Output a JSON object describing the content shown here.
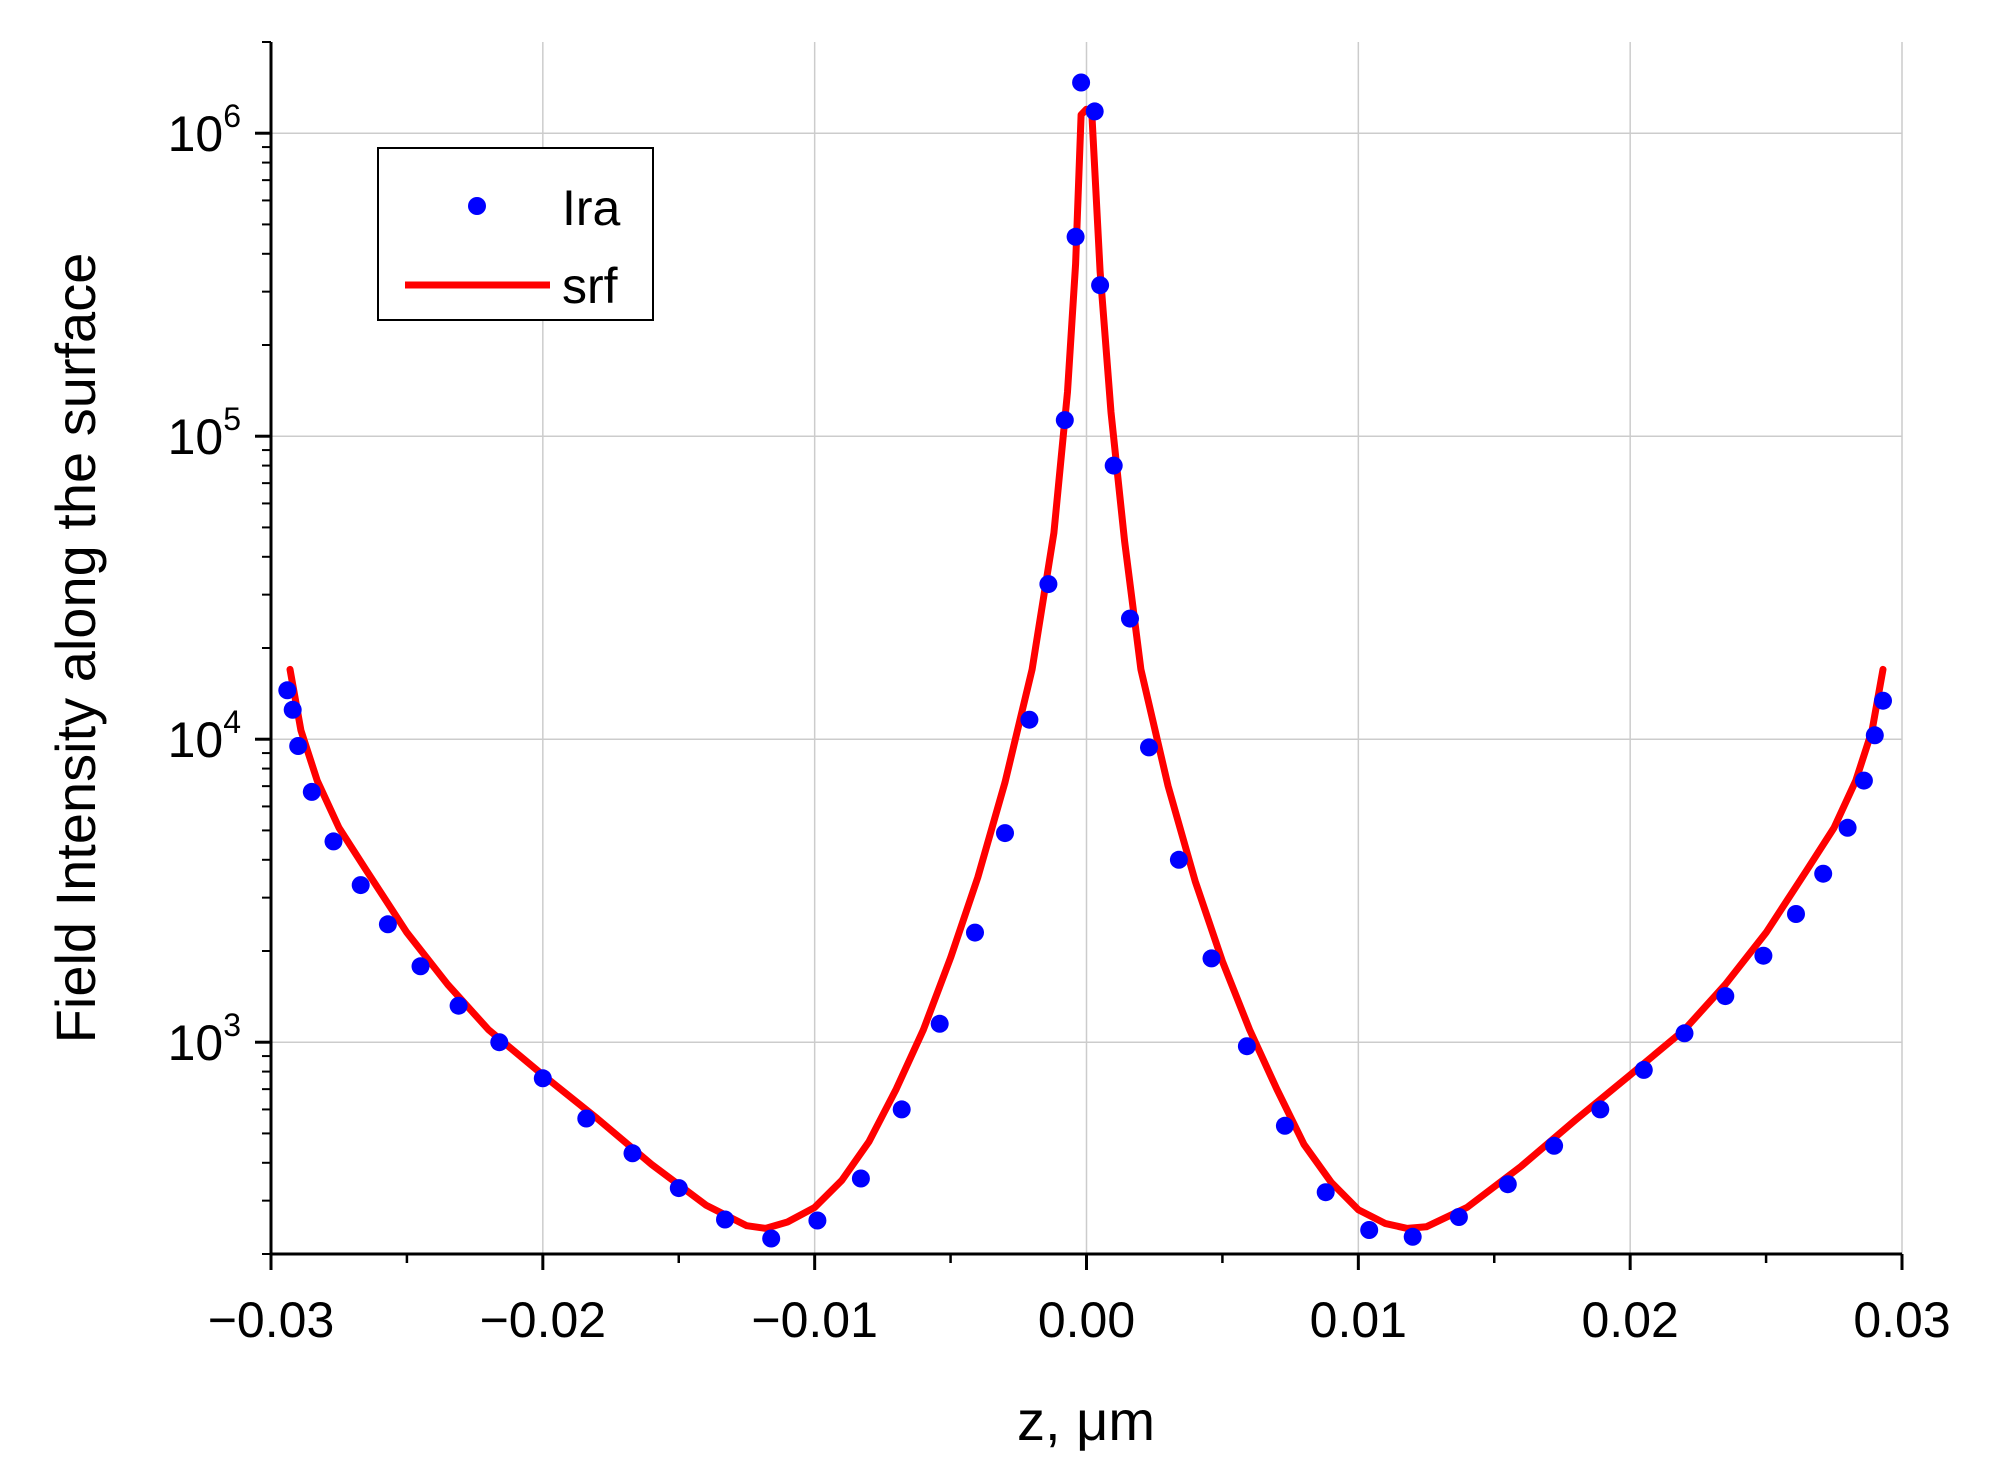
{
  "chart_data": {
    "type": "line",
    "xlabel": "z, μm",
    "ylabel": "Field Intensity along the surface",
    "xlim": [
      -0.03,
      0.03
    ],
    "ylim": [
      200,
      2000000
    ],
    "yscale": "log",
    "grid": true,
    "legend_position": "top-left",
    "x_ticks": [
      {
        "value": -0.03,
        "label": "−0.03"
      },
      {
        "value": -0.02,
        "label": "−0.02"
      },
      {
        "value": -0.01,
        "label": "−0.01"
      },
      {
        "value": 0.0,
        "label": "0.00"
      },
      {
        "value": 0.01,
        "label": "0.01"
      },
      {
        "value": 0.02,
        "label": "0.02"
      },
      {
        "value": 0.03,
        "label": "0.03"
      }
    ],
    "y_ticks": [
      {
        "value": 1000,
        "base": "10",
        "exp": "3"
      },
      {
        "value": 10000,
        "base": "10",
        "exp": "4"
      },
      {
        "value": 100000,
        "base": "10",
        "exp": "5"
      },
      {
        "value": 1000000,
        "base": "10",
        "exp": "6"
      }
    ],
    "series": [
      {
        "name": "Ira",
        "style": "scatter",
        "color": "#0000ff",
        "points": [
          [
            -0.0294,
            14500
          ],
          [
            -0.0292,
            12500
          ],
          [
            -0.029,
            9500
          ],
          [
            -0.0285,
            6700
          ],
          [
            -0.0277,
            4600
          ],
          [
            -0.0267,
            3300
          ],
          [
            -0.0257,
            2450
          ],
          [
            -0.0245,
            1780
          ],
          [
            -0.0231,
            1320
          ],
          [
            -0.0216,
            1000
          ],
          [
            -0.02,
            760
          ],
          [
            -0.0184,
            560
          ],
          [
            -0.0167,
            430
          ],
          [
            -0.015,
            330
          ],
          [
            -0.0133,
            260
          ],
          [
            -0.0116,
            225
          ],
          [
            -0.0099,
            258
          ],
          [
            -0.0083,
            355
          ],
          [
            -0.0068,
            600
          ],
          [
            -0.0054,
            1150
          ],
          [
            -0.0041,
            2300
          ],
          [
            -0.003,
            4900
          ],
          [
            -0.0021,
            11600
          ],
          [
            -0.0014,
            32500
          ],
          [
            -0.0008,
            113000
          ],
          [
            -0.0004,
            455000
          ],
          [
            -0.0002,
            1470000
          ],
          [
            0.0003,
            1180000
          ],
          [
            0.0005,
            315000
          ],
          [
            0.001,
            80000
          ],
          [
            0.0016,
            25000
          ],
          [
            0.0023,
            9400
          ],
          [
            0.0034,
            4000
          ],
          [
            0.0046,
            1890
          ],
          [
            0.0059,
            970
          ],
          [
            0.0073,
            530
          ],
          [
            0.0088,
            320
          ],
          [
            0.0104,
            240
          ],
          [
            0.012,
            228
          ],
          [
            0.0137,
            265
          ],
          [
            0.0155,
            340
          ],
          [
            0.0172,
            455
          ],
          [
            0.0189,
            600
          ],
          [
            0.0205,
            810
          ],
          [
            0.022,
            1070
          ],
          [
            0.0235,
            1420
          ],
          [
            0.0249,
            1930
          ],
          [
            0.0261,
            2650
          ],
          [
            0.0271,
            3600
          ],
          [
            0.028,
            5100
          ],
          [
            0.0286,
            7300
          ],
          [
            0.029,
            10300
          ],
          [
            0.0293,
            13400
          ]
        ]
      },
      {
        "name": "srf",
        "style": "line",
        "color": "#ff0000",
        "points": [
          [
            -0.0293,
            17000
          ],
          [
            -0.0289,
            10700
          ],
          [
            -0.0283,
            7300
          ],
          [
            -0.0275,
            5100
          ],
          [
            -0.0265,
            3700
          ],
          [
            -0.025,
            2300
          ],
          [
            -0.0235,
            1550
          ],
          [
            -0.022,
            1100
          ],
          [
            -0.02,
            780
          ],
          [
            -0.018,
            560
          ],
          [
            -0.016,
            395
          ],
          [
            -0.014,
            290
          ],
          [
            -0.0125,
            248
          ],
          [
            -0.0118,
            243
          ],
          [
            -0.011,
            255
          ],
          [
            -0.01,
            285
          ],
          [
            -0.009,
            350
          ],
          [
            -0.008,
            470
          ],
          [
            -0.007,
            700
          ],
          [
            -0.006,
            1100
          ],
          [
            -0.005,
            1900
          ],
          [
            -0.004,
            3500
          ],
          [
            -0.003,
            7200
          ],
          [
            -0.002,
            17000
          ],
          [
            -0.0012,
            48000
          ],
          [
            -0.0007,
            140000
          ],
          [
            -0.0004,
            370000
          ],
          [
            -0.0002,
            1150000
          ],
          [
            0.0,
            1200000
          ],
          [
            0.0002,
            1150000
          ],
          [
            0.0005,
            350000
          ],
          [
            0.0009,
            120000
          ],
          [
            0.0014,
            45000
          ],
          [
            0.002,
            17000
          ],
          [
            0.003,
            7000
          ],
          [
            0.004,
            3400
          ],
          [
            0.005,
            1850
          ],
          [
            0.006,
            1100
          ],
          [
            0.007,
            700
          ],
          [
            0.008,
            460
          ],
          [
            0.009,
            345
          ],
          [
            0.01,
            280
          ],
          [
            0.011,
            252
          ],
          [
            0.0118,
            243
          ],
          [
            0.0125,
            246
          ],
          [
            0.014,
            285
          ],
          [
            0.016,
            390
          ],
          [
            0.018,
            555
          ],
          [
            0.02,
            780
          ],
          [
            0.022,
            1100
          ],
          [
            0.0235,
            1550
          ],
          [
            0.025,
            2300
          ],
          [
            0.0265,
            3700
          ],
          [
            0.0275,
            5100
          ],
          [
            0.0283,
            7300
          ],
          [
            0.0289,
            10700
          ],
          [
            0.0293,
            17000
          ]
        ]
      }
    ]
  }
}
